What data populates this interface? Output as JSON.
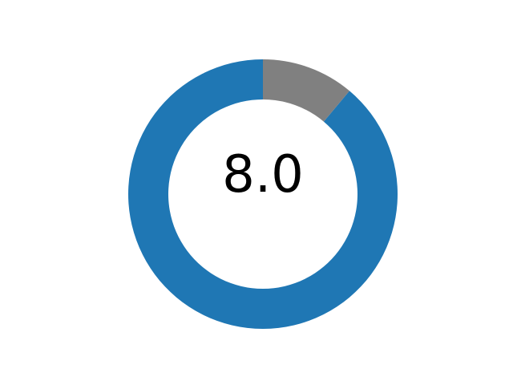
{
  "chart_data": {
    "type": "pie",
    "center_label": "8.0",
    "values": [
      8.0,
      1.0
    ],
    "max": 9.0,
    "colors": {
      "value": "#1f77b4",
      "remainder": "#808080",
      "background": "#ffffff"
    },
    "legend": "none",
    "grid": false
  }
}
